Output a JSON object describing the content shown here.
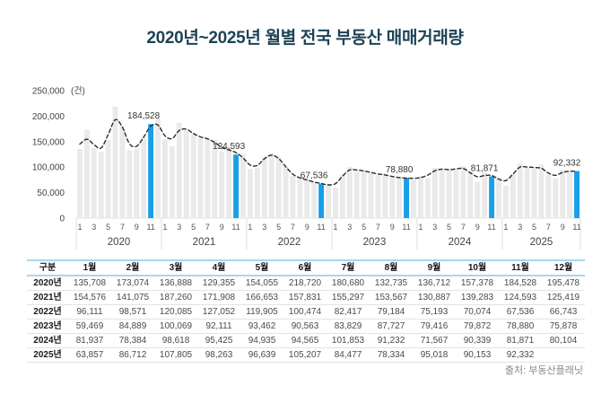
{
  "title": "2020년~2025년 월별 전국 부동산 매매거래량",
  "source": "출처: 부동산플래닛",
  "colors": {
    "title_navy": "#1d4356",
    "bar_default": "#eaeaea",
    "bar_highlight": "#189fe8",
    "trend_line": "#2b2b2b",
    "axis_text": "#555555",
    "separator": "#dddddd",
    "table_border_blue": "#a6d7ee"
  },
  "chart_data": {
    "type": "bar",
    "title": "2020년~2025년 월별 전국 부동산 매매거래량",
    "ylabel": "(건)",
    "ylim": [
      0,
      250000
    ],
    "yticks": [
      0,
      50000,
      100000,
      150000,
      200000,
      250000
    ],
    "ytick_labels": [
      "0",
      "50,000",
      "100,000",
      "150,000",
      "200,000",
      "250,000"
    ],
    "grid": false,
    "legend": "none",
    "xticks_per_year": [
      1,
      3,
      5,
      7,
      9,
      11
    ],
    "year_labels": [
      "2020",
      "2021",
      "2022",
      "2023",
      "2024",
      "2025"
    ],
    "highlight_month": 11,
    "highlight_value_labels": [
      "184,528",
      "124,593",
      "67,536",
      "78,880",
      "81,871",
      "92,332"
    ],
    "overlay_line": {
      "type": "smoothed-moving-average",
      "style": "dashed",
      "color": "#2b2b2b"
    },
    "series": [
      {
        "name": "2020년",
        "values": [
          135708,
          173074,
          136888,
          129355,
          154055,
          218720,
          180680,
          132735,
          136712,
          157378,
          184528,
          195478
        ]
      },
      {
        "name": "2021년",
        "values": [
          154576,
          141075,
          187260,
          171908,
          166653,
          157831,
          155297,
          153567,
          130887,
          139283,
          124593,
          125419
        ]
      },
      {
        "name": "2022년",
        "values": [
          96111,
          98571,
          120085,
          127052,
          119905,
          100474,
          82417,
          79184,
          75193,
          70074,
          67536,
          66743
        ]
      },
      {
        "name": "2023년",
        "values": [
          59469,
          84889,
          100069,
          92111,
          93462,
          90563,
          83829,
          87727,
          79416,
          79872,
          78880,
          75878
        ]
      },
      {
        "name": "2024년",
        "values": [
          81937,
          78384,
          98618,
          95425,
          94935,
          94565,
          101853,
          91232,
          71567,
          90339,
          81871,
          80104
        ]
      },
      {
        "name": "2025년",
        "values": [
          63857,
          86712,
          107805,
          98263,
          96639,
          105207,
          84477,
          78334,
          95018,
          90153,
          92332
        ]
      }
    ]
  },
  "table": {
    "col_header": [
      "구분",
      "1월",
      "2월",
      "3월",
      "4월",
      "5월",
      "6월",
      "7월",
      "8월",
      "9월",
      "10월",
      "11월",
      "12월"
    ],
    "rows": [
      {
        "label": "2020년",
        "values": [
          "135,708",
          "173,074",
          "136,888",
          "129,355",
          "154,055",
          "218,720",
          "180,680",
          "132,735",
          "136,712",
          "157,378",
          "184,528",
          "195,478"
        ]
      },
      {
        "label": "2021년",
        "values": [
          "154,576",
          "141,075",
          "187,260",
          "171,908",
          "166,653",
          "157,831",
          "155,297",
          "153,567",
          "130,887",
          "139,283",
          "124,593",
          "125,419"
        ]
      },
      {
        "label": "2022년",
        "values": [
          "96,111",
          "98,571",
          "120,085",
          "127,052",
          "119,905",
          "100,474",
          "82,417",
          "79,184",
          "75,193",
          "70,074",
          "67,536",
          "66,743"
        ]
      },
      {
        "label": "2023년",
        "values": [
          "59,469",
          "84,889",
          "100,069",
          "92,111",
          "93,462",
          "90,563",
          "83,829",
          "87,727",
          "79,416",
          "79,872",
          "78,880",
          "75,878"
        ]
      },
      {
        "label": "2024년",
        "values": [
          "81,937",
          "78,384",
          "98,618",
          "95,425",
          "94,935",
          "94,565",
          "101,853",
          "91,232",
          "71,567",
          "90,339",
          "81,871",
          "80,104"
        ]
      },
      {
        "label": "2025년",
        "values": [
          "63,857",
          "86,712",
          "107,805",
          "98,263",
          "96,639",
          "105,207",
          "84,477",
          "78,334",
          "95,018",
          "90,153",
          "92,332",
          ""
        ]
      }
    ]
  }
}
